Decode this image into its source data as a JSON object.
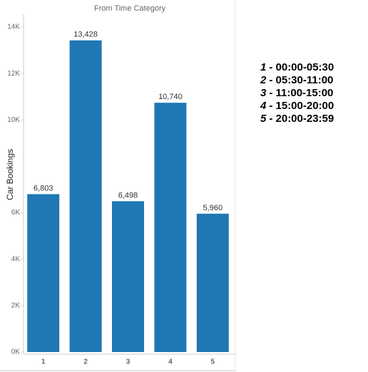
{
  "chart_data": {
    "type": "bar",
    "title": "From Time Category",
    "y_label": "Car Bookings",
    "categories": [
      "1",
      "2",
      "3",
      "4",
      "5"
    ],
    "values": [
      6803,
      13428,
      6498,
      10740,
      5960
    ],
    "value_labels": [
      "6,803",
      "13,428",
      "6,498",
      "10,740",
      "5,960"
    ],
    "color": "#1f77b4",
    "ylim": [
      0,
      14000
    ],
    "yticks": [
      {
        "value": 0,
        "label": "0K"
      },
      {
        "value": 2000,
        "label": "2K"
      },
      {
        "value": 4000,
        "label": "4K"
      },
      {
        "value": 6000,
        "label": "6K"
      },
      {
        "value": 10000,
        "label": "10K"
      },
      {
        "value": 12000,
        "label": "12K"
      },
      {
        "value": 14000,
        "label": "14K"
      }
    ]
  },
  "legend": [
    {
      "key": "1",
      "text": "- 00:00-05:30"
    },
    {
      "key": "2",
      "text": "- 05:30-11:00"
    },
    {
      "key": "3",
      "text": "- 11:00-15:00"
    },
    {
      "key": "4",
      "text": "- 15:00-20:00"
    },
    {
      "key": "5",
      "text": "- 20:00-23:59"
    }
  ]
}
